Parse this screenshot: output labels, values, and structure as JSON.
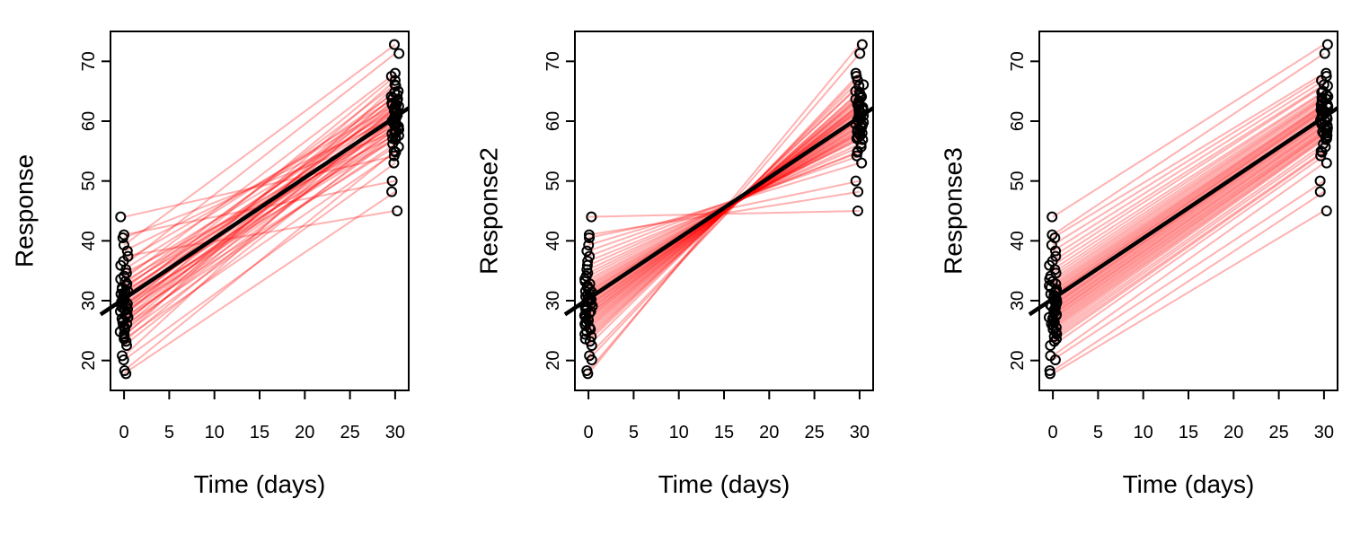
{
  "chart_data": [
    {
      "type": "line",
      "title": "",
      "xlabel": "Time (days)",
      "ylabel": "Response",
      "xlim": [
        -1.5,
        31.5
      ],
      "ylim": [
        15,
        75
      ],
      "xticks": [
        0,
        5,
        10,
        15,
        20,
        25,
        30
      ],
      "yticks": [
        20,
        30,
        40,
        50,
        60,
        70
      ],
      "grid": false,
      "legend": "none",
      "subject_line_color": "#ff0000",
      "mean_line_color": "#000000",
      "point_color": "#000000",
      "mean_line": {
        "x": [
          -1.5,
          31.5
        ],
        "y": [
          28.8,
          62.2
        ]
      },
      "subjects": {
        "x_start": 0,
        "x_end": 30,
        "start_values": [
          17.8,
          18.3,
          20.1,
          20.8,
          22.5,
          23.2,
          23.6,
          24.0,
          24.4,
          24.8,
          25.2,
          25.5,
          25.8,
          26.1,
          26.4,
          26.7,
          27.0,
          27.2,
          27.5,
          27.7,
          27.9,
          28.2,
          28.4,
          28.6,
          28.9,
          29.1,
          29.3,
          29.5,
          29.8,
          30.0,
          30.2,
          30.4,
          30.7,
          30.9,
          31.1,
          31.4,
          31.6,
          31.9,
          32.2,
          32.5,
          32.8,
          33.2,
          33.6,
          34.1,
          34.6,
          35.2,
          35.9,
          36.6,
          37.4,
          38.3,
          39.3,
          40.5,
          41.0,
          44.0
        ],
        "end_values": [
          48.2,
          55.0,
          53.0,
          62.5,
          58.0,
          60.4,
          54.8,
          65.9,
          57.3,
          61.8,
          59.1,
          63.7,
          56.2,
          64.4,
          60.9,
          58.6,
          62.1,
          55.7,
          66.8,
          59.8,
          61.3,
          57.9,
          63.0,
          60.2,
          65.0,
          58.4,
          62.7,
          56.9,
          61.0,
          64.1,
          59.5,
          67.5,
          60.6,
          57.1,
          63.4,
          61.6,
          58.9,
          66.1,
          62.3,
          59.3,
          64.8,
          60.0,
          68.0,
          61.9,
          57.6,
          63.9,
          71.3,
          62.8,
          45.0,
          60.7,
          72.8,
          58.2,
          50.0,
          54.2
        ]
      }
    },
    {
      "type": "line",
      "title": "",
      "xlabel": "Time (days)",
      "ylabel": "Response2",
      "xlim": [
        -1.5,
        31.5
      ],
      "ylim": [
        15,
        75
      ],
      "xticks": [
        0,
        5,
        10,
        15,
        20,
        25,
        30
      ],
      "yticks": [
        20,
        30,
        40,
        50,
        60,
        70
      ],
      "grid": false,
      "legend": "none",
      "subject_line_color": "#ff0000",
      "mean_line_color": "#000000",
      "point_color": "#000000",
      "mean_line": {
        "x": [
          -1.5,
          31.5
        ],
        "y": [
          28.8,
          62.2
        ]
      },
      "subjects": {
        "x_start": 0,
        "x_end": 30,
        "start_values": [
          17.8,
          18.3,
          20.1,
          20.8,
          22.5,
          23.2,
          23.6,
          24.0,
          24.4,
          24.8,
          25.2,
          25.5,
          25.8,
          26.1,
          26.4,
          26.7,
          27.0,
          27.2,
          27.5,
          27.7,
          27.9,
          28.2,
          28.4,
          28.6,
          28.9,
          29.1,
          29.3,
          29.5,
          29.8,
          30.0,
          30.2,
          30.4,
          30.7,
          30.9,
          31.1,
          31.4,
          31.6,
          31.9,
          32.2,
          32.5,
          32.8,
          33.2,
          33.6,
          34.1,
          34.6,
          35.2,
          35.9,
          36.6,
          37.4,
          38.3,
          39.3,
          40.5,
          41.0,
          44.0
        ],
        "end_values": [
          72.8,
          71.3,
          68.0,
          67.5,
          66.8,
          66.1,
          65.9,
          65.0,
          64.8,
          64.4,
          64.1,
          63.9,
          63.7,
          63.4,
          63.0,
          62.8,
          62.7,
          62.5,
          62.3,
          62.1,
          61.9,
          61.8,
          61.6,
          61.3,
          61.0,
          60.9,
          60.7,
          60.6,
          60.4,
          60.2,
          60.0,
          59.8,
          59.5,
          59.3,
          59.1,
          58.9,
          58.6,
          58.4,
          58.2,
          58.0,
          57.9,
          57.6,
          57.3,
          57.1,
          56.9,
          56.2,
          55.7,
          55.0,
          54.8,
          54.2,
          53.0,
          50.0,
          48.2,
          45.0
        ]
      }
    },
    {
      "type": "line",
      "title": "",
      "xlabel": "Time (days)",
      "ylabel": "Response3",
      "xlim": [
        -1.5,
        31.5
      ],
      "ylim": [
        15,
        75
      ],
      "xticks": [
        0,
        5,
        10,
        15,
        20,
        25,
        30
      ],
      "yticks": [
        20,
        30,
        40,
        50,
        60,
        70
      ],
      "grid": false,
      "legend": "none",
      "subject_line_color": "#ff0000",
      "mean_line_color": "#000000",
      "point_color": "#000000",
      "mean_line": {
        "x": [
          -1.5,
          31.5
        ],
        "y": [
          28.8,
          62.2
        ]
      },
      "subjects": {
        "x_start": 0,
        "x_end": 30,
        "start_values": [
          17.8,
          18.3,
          20.1,
          20.8,
          22.5,
          23.2,
          23.6,
          24.0,
          24.4,
          24.8,
          25.2,
          25.5,
          25.8,
          26.1,
          26.4,
          26.7,
          27.0,
          27.2,
          27.5,
          27.7,
          27.9,
          28.2,
          28.4,
          28.6,
          28.9,
          29.1,
          29.3,
          29.5,
          29.8,
          30.0,
          30.2,
          30.4,
          30.7,
          30.9,
          31.1,
          31.4,
          31.6,
          31.9,
          32.2,
          32.5,
          32.8,
          33.2,
          33.6,
          34.1,
          34.6,
          35.2,
          35.9,
          36.6,
          37.4,
          38.3,
          39.3,
          40.5,
          41.0,
          44.0
        ],
        "end_values": [
          45.0,
          48.2,
          50.0,
          53.0,
          54.2,
          54.8,
          55.0,
          55.7,
          56.2,
          56.9,
          57.1,
          57.3,
          57.6,
          57.9,
          58.0,
          58.2,
          58.4,
          58.6,
          58.9,
          59.1,
          59.3,
          59.5,
          59.8,
          60.0,
          60.2,
          60.4,
          60.6,
          60.7,
          60.9,
          61.0,
          61.3,
          61.6,
          61.8,
          61.9,
          62.1,
          62.3,
          62.5,
          62.7,
          62.8,
          63.0,
          63.4,
          63.7,
          63.9,
          64.1,
          64.4,
          64.8,
          65.0,
          65.9,
          66.1,
          66.8,
          67.5,
          68.0,
          71.3,
          72.8
        ]
      }
    }
  ]
}
